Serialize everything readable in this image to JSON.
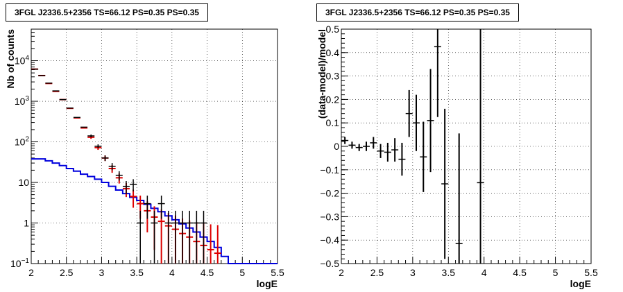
{
  "chart_data": [
    {
      "type": "line",
      "title": "3FGL J2336.5+2356 TS=66.12 PS=0.35 PS=0.35",
      "xlabel": "logE",
      "ylabel": "Nb of counts",
      "xlim": [
        2,
        5.5
      ],
      "ylim": [
        0.1,
        60000
      ],
      "yscale": "log",
      "grid": true,
      "x_ticks": [
        "2",
        "2.5",
        "3",
        "3.5",
        "4",
        "4.5",
        "5",
        "5.5"
      ],
      "y_ticks": [
        {
          "value": 0.1,
          "label": "10^{-1}"
        },
        {
          "value": 1,
          "label": "1"
        },
        {
          "value": 10,
          "label": "10"
        },
        {
          "value": 100,
          "label": "10^{2}"
        },
        {
          "value": 1000,
          "label": "10^{3}"
        },
        {
          "value": 10000,
          "label": "10^{4}"
        }
      ],
      "x_edges": [
        2.0,
        2.1,
        2.2,
        2.3,
        2.4,
        2.5,
        2.6,
        2.7,
        2.8,
        2.9,
        3.0,
        3.1,
        3.2,
        3.3,
        3.4,
        3.5,
        3.6,
        3.7,
        3.8,
        3.9,
        4.0,
        4.1,
        4.2,
        4.3,
        4.4,
        4.5,
        4.6,
        4.7,
        4.8,
        4.9,
        5.0,
        5.1,
        5.2,
        5.3,
        5.4,
        5.5
      ],
      "series": [
        {
          "kind": "data-points",
          "color": "#000000",
          "x": [
            2.05,
            2.15,
            2.25,
            2.35,
            2.45,
            2.55,
            2.65,
            2.75,
            2.85,
            2.95,
            3.05,
            3.15,
            3.25,
            3.35,
            3.45,
            3.55,
            3.65,
            3.75,
            3.85,
            3.95,
            4.05,
            4.15,
            4.25,
            4.35,
            4.45,
            4.55,
            4.65
          ],
          "y": [
            6200,
            4300,
            2800,
            1800,
            1100,
            680,
            400,
            230,
            140,
            78,
            40,
            25,
            15,
            8,
            9,
            1,
            3,
            1,
            3,
            1,
            1,
            1,
            1,
            1,
            1,
            null,
            null
          ]
        },
        {
          "kind": "model",
          "color": "#dd0000",
          "x": [
            2.05,
            2.15,
            2.25,
            2.35,
            2.45,
            2.55,
            2.65,
            2.75,
            2.85,
            2.95,
            3.05,
            3.15,
            3.25,
            3.35,
            3.45,
            3.55,
            3.65,
            3.75,
            3.85,
            3.95,
            4.05,
            4.15,
            4.25,
            4.35,
            4.45,
            4.55,
            4.65
          ],
          "y": [
            6200,
            4300,
            2750,
            1750,
            1100,
            670,
            390,
            220,
            130,
            72,
            40,
            22,
            13,
            7,
            4.5,
            3,
            2,
            1.4,
            1.1,
            0.85,
            0.7,
            0.55,
            0.45,
            0.35,
            0.28,
            0.22,
            0.18
          ]
        },
        {
          "kind": "step",
          "color": "#0000dd",
          "y": [
            38,
            38,
            34,
            30,
            26,
            22,
            19,
            16,
            14,
            12,
            10,
            8,
            6.5,
            5.3,
            4.3,
            3.6,
            2.9,
            2.3,
            1.9,
            1.5,
            1.2,
            0.95,
            0.75,
            0.6,
            0.45,
            0.35,
            0.25,
            0.15,
            0.1,
            0.1,
            0.1,
            0.1,
            0.1,
            0.1,
            0.1
          ]
        }
      ]
    },
    {
      "type": "scatter",
      "title": "3FGL J2336.5+2356 TS=66.12 PS=0.35 PS=0.35",
      "xlabel": "logE",
      "ylabel": "(data-model)/model",
      "xlim": [
        2,
        5.5
      ],
      "ylim": [
        -0.5,
        0.5
      ],
      "grid": true,
      "x_ticks": [
        "2",
        "2.5",
        "3",
        "3.5",
        "4",
        "4.5",
        "5",
        "5.5"
      ],
      "y_ticks": [
        "−0.5",
        "−0.4",
        "−0.3",
        "−0.2",
        "−0.1",
        "0",
        "0.1",
        "0.2",
        "0.3",
        "0.4",
        "0.5"
      ],
      "series": [
        {
          "color": "#000000",
          "x": [
            2.05,
            2.15,
            2.25,
            2.35,
            2.45,
            2.55,
            2.65,
            2.75,
            2.85,
            2.95,
            3.05,
            3.15,
            3.25,
            3.35,
            3.45,
            3.65,
            3.95
          ],
          "y": [
            0.025,
            0.005,
            -0.005,
            0.0,
            0.015,
            -0.02,
            -0.025,
            -0.015,
            -0.055,
            0.14,
            0.1,
            -0.045,
            0.11,
            0.425,
            -0.16,
            -0.415,
            -0.155
          ],
          "err": [
            0.015,
            0.015,
            0.015,
            0.02,
            0.025,
            0.03,
            0.04,
            0.05,
            0.07,
            0.1,
            0.12,
            0.15,
            0.22,
            0.3,
            0.32,
            0.47,
            1.0
          ]
        }
      ]
    }
  ]
}
